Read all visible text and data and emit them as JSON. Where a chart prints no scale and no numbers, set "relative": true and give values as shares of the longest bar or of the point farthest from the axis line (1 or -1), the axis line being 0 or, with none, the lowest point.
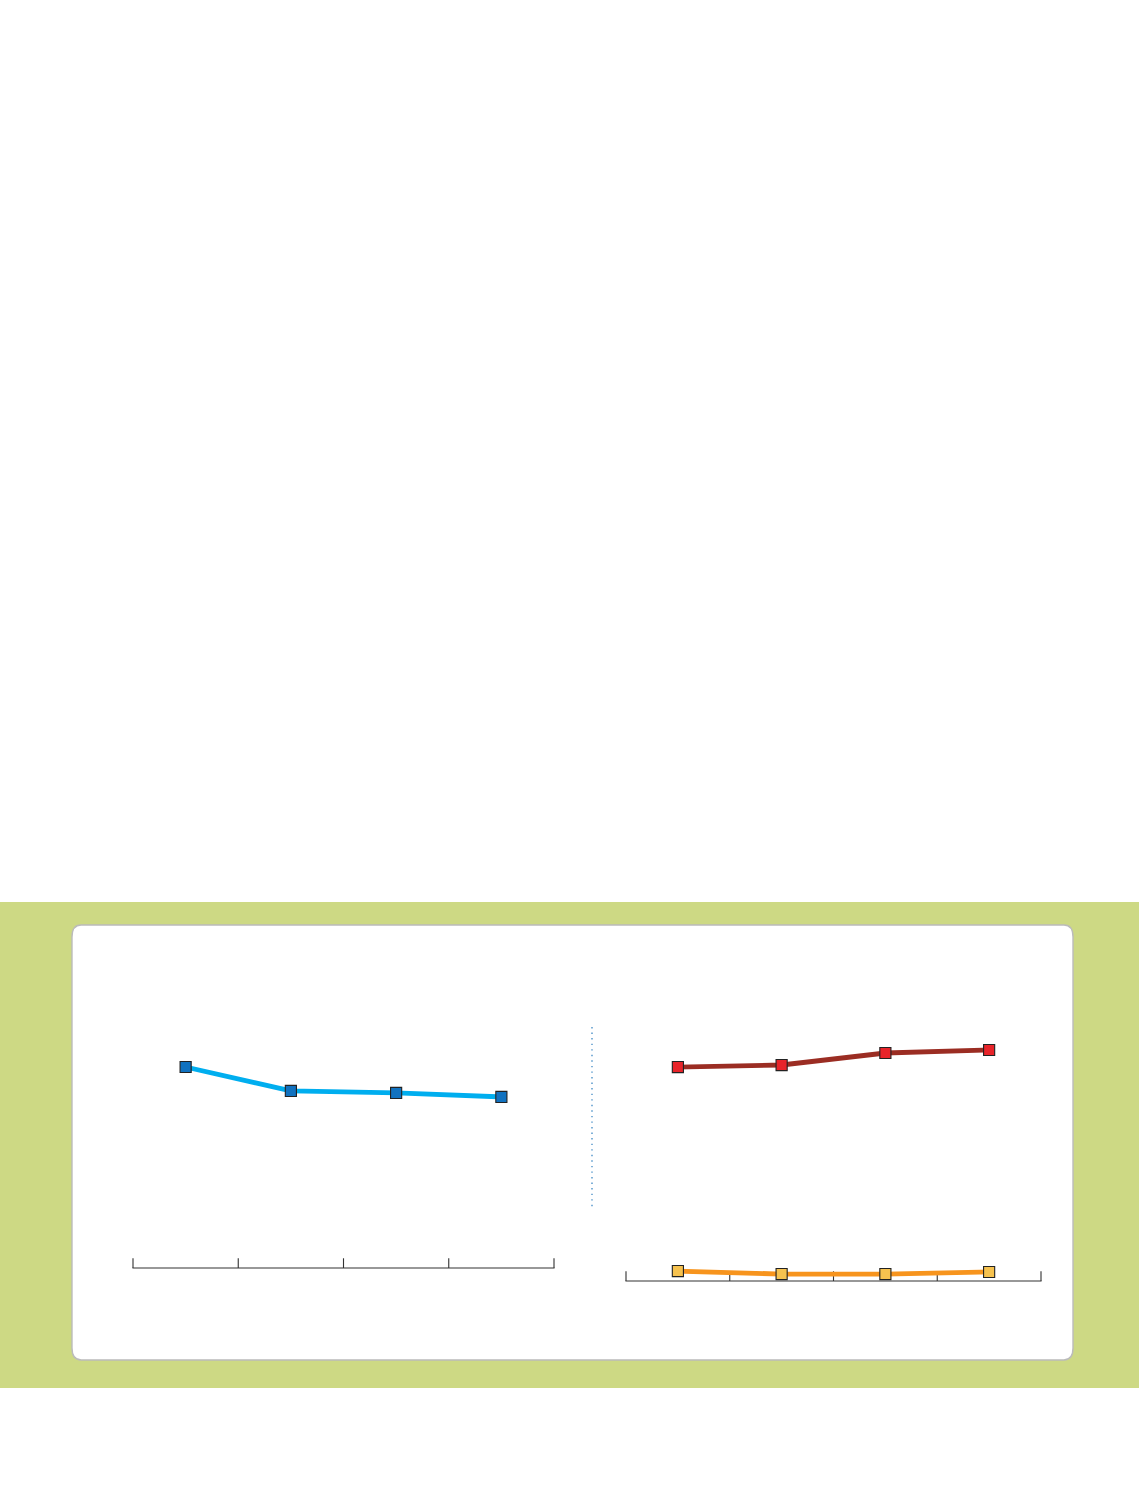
{
  "chart_data": [
    {
      "type": "line",
      "relative": true,
      "categories": [
        null,
        null,
        null,
        null
      ],
      "marker": "square",
      "tick_labels": false,
      "series": [
        {
          "color": "#00aeef",
          "colors": [
            "#1172c0",
            "#1172c0",
            "#1172c0",
            "#1172c0"
          ],
          "values": [
            1,
            0.881,
            0.871,
            0.851
          ]
        }
      ]
    },
    {
      "type": "line",
      "relative": true,
      "categories": [
        null,
        null,
        null,
        null
      ],
      "marker": "square",
      "tick_labels": false,
      "series": [
        {
          "color": "#9b2d23",
          "colors": [
            "#e8242a",
            "#e8242a",
            "#e8242a",
            "#e8242a"
          ],
          "values": [
            0.926,
            0.935,
            0.987,
            1
          ]
        },
        {
          "color": "#f7941d",
          "colors": [
            "#f6c24f",
            "#f6c24f",
            "#f6c24f",
            "#f6c24f"
          ],
          "values": [
            0.043,
            0.03,
            0.03,
            0.039
          ]
        }
      ]
    }
  ]
}
